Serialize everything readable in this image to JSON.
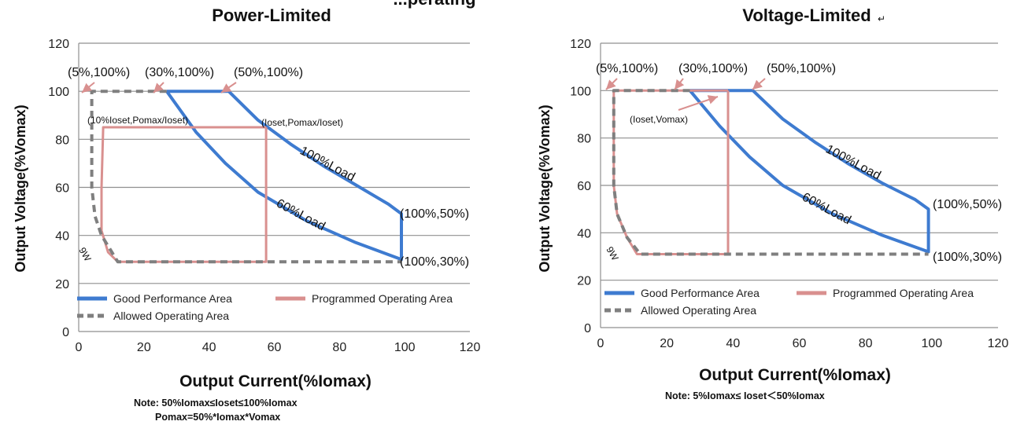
{
  "colors": {
    "good": "#3e7bd0",
    "programmed": "#d9908f",
    "allowed": "#7f7f7f",
    "grid": "#8f8f8f",
    "arrow": "#d9908f"
  },
  "chart_data": [
    {
      "type": "line",
      "title": "Power-Limited",
      "title_clipped_prefix": "...perating",
      "xlabel": "Output Current(%Iomax)",
      "ylabel": "Output Voltage(%Vomax)",
      "xlim": [
        0,
        120
      ],
      "ylim": [
        0,
        120
      ],
      "xticks": [
        0,
        20,
        40,
        60,
        80,
        100,
        120
      ],
      "yticks": [
        0,
        20,
        40,
        60,
        80,
        100,
        120
      ],
      "grid": "horizontal",
      "legend_position": "bottom-left",
      "series": [
        {
          "name": "Good Performance Area",
          "style": "solid",
          "color": "#3e7bd0",
          "x": [
            27,
            46,
            55,
            65,
            75,
            85,
            95,
            99,
            99,
            85,
            70,
            55,
            45,
            36,
            27
          ],
          "y": [
            100,
            100,
            88,
            78,
            69,
            61,
            53,
            49,
            30,
            37,
            46,
            58,
            70,
            83,
            100
          ]
        },
        {
          "name": "Programmed Operating Area",
          "style": "solid",
          "color": "#d9908f",
          "x": [
            57.5,
            7.5,
            7,
            7,
            9,
            12,
            57.5,
            57.5
          ],
          "y": [
            85,
            85,
            60,
            42,
            33,
            29,
            29,
            85
          ]
        },
        {
          "name": "Allowed Operating Area",
          "style": "dashed",
          "color": "#7f7f7f",
          "x": [
            27,
            4,
            4,
            4,
            5,
            7,
            12,
            99
          ],
          "y": [
            100,
            100,
            80,
            60,
            48,
            40,
            29,
            29
          ]
        }
      ],
      "annotations": [
        {
          "text": "(5%,100%)",
          "x": 2,
          "y": 110
        },
        {
          "text": "(30%,100%)",
          "x": 30,
          "y": 110
        },
        {
          "text": "(50%,100%)",
          "x": 62,
          "y": 110
        },
        {
          "text": "(10%Ioset,Pomax/Ioset)",
          "x": 6,
          "y": 90
        },
        {
          "text": "(Ioset,Pomax/Ioset)",
          "x": 69,
          "y": 88
        },
        {
          "text": "(100%,50%)",
          "x": 113,
          "y": 50
        },
        {
          "text": "(100%,30%)",
          "x": 113,
          "y": 30
        },
        {
          "text": "100%Load",
          "x": 83,
          "y": 68
        },
        {
          "text": "60%Load",
          "x": 69,
          "y": 50
        },
        {
          "text": "9W",
          "x": 6,
          "y": 34
        }
      ],
      "note_lines": [
        "Note:  50%Iomax≤Ioset≤100%Iomax",
        "Pomax=50%*Iomax*Vomax"
      ]
    },
    {
      "type": "line",
      "title": "Voltage-Limited",
      "title_mark": "↵",
      "xlabel": "Output Current(%Iomax)",
      "ylabel": "Output Voltage(%Vomax)",
      "xlim": [
        0,
        120
      ],
      "ylim": [
        0,
        120
      ],
      "xticks": [
        0,
        20,
        40,
        60,
        80,
        100,
        120
      ],
      "yticks": [
        0,
        20,
        40,
        60,
        80,
        100,
        120
      ],
      "grid": "horizontal",
      "legend_position": "bottom-left",
      "series": [
        {
          "name": "Good Performance Area",
          "style": "solid",
          "color": "#3e7bd0",
          "x": [
            27,
            46,
            55,
            65,
            75,
            85,
            95,
            99,
            99,
            85,
            70,
            55,
            45,
            36,
            27
          ],
          "y": [
            100,
            100,
            88,
            78,
            69,
            61,
            54,
            50,
            32,
            39,
            48,
            60,
            72,
            85,
            100
          ]
        },
        {
          "name": "Programmed Operating Area",
          "style": "solid",
          "color": "#d9908f",
          "x": [
            38.5,
            4,
            4,
            5,
            8,
            11,
            38.5,
            38.5
          ],
          "y": [
            100,
            100,
            60,
            48,
            38,
            31,
            31,
            100
          ]
        },
        {
          "name": "Allowed Operating Area",
          "style": "dashed",
          "color": "#7f7f7f",
          "x": [
            27,
            4,
            4,
            5,
            8,
            12,
            99
          ],
          "y": [
            100,
            100,
            60,
            48,
            38,
            31,
            31
          ]
        }
      ],
      "annotations": [
        {
          "text": "(5%,100%)",
          "x": 2,
          "y": 110
        },
        {
          "text": "(30%,100%)",
          "x": 30,
          "y": 110
        },
        {
          "text": "(50%,100%)",
          "x": 62,
          "y": 110
        },
        {
          "text": "(Ioset,Vomax)",
          "x": 20,
          "y": 87
        },
        {
          "text": "(100%,50%)",
          "x": 112,
          "y": 52
        },
        {
          "text": "(100%,30%)",
          "x": 112,
          "y": 30
        },
        {
          "text": "100%Load",
          "x": 83,
          "y": 70
        },
        {
          "text": "60%Load",
          "x": 70,
          "y": 52
        },
        {
          "text": "9W",
          "x": 5,
          "y": 34
        }
      ],
      "note_lines": [
        "Note: 5%Iomax≤ Ioset＜50%Iomax"
      ]
    }
  ]
}
